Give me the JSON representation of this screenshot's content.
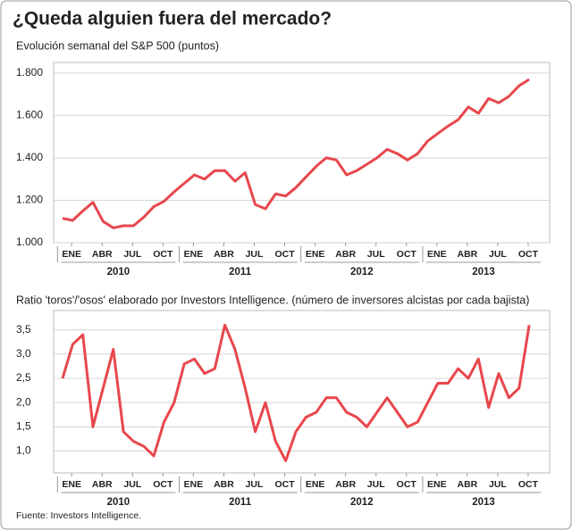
{
  "title": "¿Queda alguien fuera del mercado?",
  "source": "Fuente: Investors Intelligence.",
  "chart_data": [
    {
      "type": "line",
      "subtitle": "Evolución semanal del S&P 500 (puntos)",
      "x": [
        "2010-01",
        "2010-02",
        "2010-03",
        "2010-04",
        "2010-05",
        "2010-06",
        "2010-07",
        "2010-08",
        "2010-09",
        "2010-10",
        "2010-11",
        "2010-12",
        "2011-01",
        "2011-02",
        "2011-03",
        "2011-04",
        "2011-05",
        "2011-06",
        "2011-07",
        "2011-08",
        "2011-09",
        "2011-10",
        "2011-11",
        "2011-12",
        "2012-01",
        "2012-02",
        "2012-03",
        "2012-04",
        "2012-05",
        "2012-06",
        "2012-07",
        "2012-08",
        "2012-09",
        "2012-10",
        "2012-11",
        "2012-12",
        "2013-01",
        "2013-02",
        "2013-03",
        "2013-04",
        "2013-05",
        "2013-06",
        "2013-07",
        "2013-08",
        "2013-09",
        "2013-10",
        "2013-11"
      ],
      "series": [
        {
          "name": "S&P 500",
          "color": "#e8474c",
          "values": [
            1115,
            1105,
            1150,
            1190,
            1100,
            1070,
            1080,
            1080,
            1120,
            1170,
            1195,
            1240,
            1280,
            1320,
            1300,
            1340,
            1340,
            1290,
            1330,
            1180,
            1160,
            1230,
            1220,
            1260,
            1310,
            1360,
            1400,
            1390,
            1320,
            1340,
            1370,
            1400,
            1440,
            1420,
            1390,
            1420,
            1480,
            1515,
            1550,
            1580,
            1640,
            1610,
            1680,
            1660,
            1690,
            1740,
            1770
          ]
        }
      ],
      "ylim": [
        1000,
        1850
      ],
      "yticks": [
        {
          "value": 1000,
          "label": "1.000"
        },
        {
          "value": 1200,
          "label": "1.200"
        },
        {
          "value": 1400,
          "label": "1.400"
        },
        {
          "value": 1600,
          "label": "1.600"
        },
        {
          "value": 1800,
          "label": "1.800"
        }
      ],
      "xticks": [
        {
          "value": "2010-01",
          "label": "ENE"
        },
        {
          "value": "2010-04",
          "label": "ABR"
        },
        {
          "value": "2010-07",
          "label": "JUL"
        },
        {
          "value": "2010-10",
          "label": "OCT"
        },
        {
          "value": "2011-01",
          "label": "ENE"
        },
        {
          "value": "2011-04",
          "label": "ABR"
        },
        {
          "value": "2011-07",
          "label": "JUL"
        },
        {
          "value": "2011-10",
          "label": "OCT"
        },
        {
          "value": "2012-01",
          "label": "ENE"
        },
        {
          "value": "2012-04",
          "label": "ABR"
        },
        {
          "value": "2012-07",
          "label": "JUL"
        },
        {
          "value": "2012-10",
          "label": "OCT"
        },
        {
          "value": "2013-01",
          "label": "ENE"
        },
        {
          "value": "2013-04",
          "label": "ABR"
        },
        {
          "value": "2013-07",
          "label": "JUL"
        },
        {
          "value": "2013-10",
          "label": "OCT"
        }
      ],
      "xgroups": [
        "2010",
        "2011",
        "2012",
        "2013"
      ],
      "grid": true
    },
    {
      "type": "line",
      "subtitle": "Ratio 'toros'/'osos' elaborado por Investors Intelligence. (número de inversores alcistas por cada bajista)",
      "x": [
        "2010-01",
        "2010-02",
        "2010-03",
        "2010-04",
        "2010-05",
        "2010-06",
        "2010-07",
        "2010-08",
        "2010-09",
        "2010-10",
        "2010-11",
        "2010-12",
        "2011-01",
        "2011-02",
        "2011-03",
        "2011-04",
        "2011-05",
        "2011-06",
        "2011-07",
        "2011-08",
        "2011-09",
        "2011-10",
        "2011-11",
        "2011-12",
        "2012-01",
        "2012-02",
        "2012-03",
        "2012-04",
        "2012-05",
        "2012-06",
        "2012-07",
        "2012-08",
        "2012-09",
        "2012-10",
        "2012-11",
        "2012-12",
        "2013-01",
        "2013-02",
        "2013-03",
        "2013-04",
        "2013-05",
        "2013-06",
        "2013-07",
        "2013-08",
        "2013-09",
        "2013-10",
        "2013-11"
      ],
      "series": [
        {
          "name": "Ratio toros/osos",
          "color": "#e8474c",
          "values": [
            2.5,
            3.2,
            3.4,
            1.5,
            2.3,
            3.1,
            1.4,
            1.2,
            1.1,
            0.9,
            1.6,
            2.0,
            2.8,
            2.9,
            2.6,
            2.7,
            3.6,
            3.1,
            2.3,
            1.4,
            2.0,
            1.2,
            0.8,
            1.4,
            1.7,
            1.8,
            2.1,
            2.1,
            1.8,
            1.7,
            1.5,
            1.8,
            2.1,
            1.8,
            1.5,
            1.6,
            2.0,
            2.4,
            2.4,
            2.7,
            2.5,
            2.9,
            1.9,
            2.6,
            2.1,
            2.3,
            3.6
          ]
        }
      ],
      "ylim": [
        0.55,
        3.9
      ],
      "yticks": [
        {
          "value": 1.0,
          "label": "1,0"
        },
        {
          "value": 1.5,
          "label": "1,5"
        },
        {
          "value": 2.0,
          "label": "2,0"
        },
        {
          "value": 2.5,
          "label": "2,5"
        },
        {
          "value": 3.0,
          "label": "3,0"
        },
        {
          "value": 3.5,
          "label": "3,5"
        }
      ],
      "xticks": [
        {
          "value": "2010-01",
          "label": "ENE"
        },
        {
          "value": "2010-04",
          "label": "ABR"
        },
        {
          "value": "2010-07",
          "label": "JUL"
        },
        {
          "value": "2010-10",
          "label": "OCT"
        },
        {
          "value": "2011-01",
          "label": "ENE"
        },
        {
          "value": "2011-04",
          "label": "ABR"
        },
        {
          "value": "2011-07",
          "label": "JUL"
        },
        {
          "value": "2011-10",
          "label": "OCT"
        },
        {
          "value": "2012-01",
          "label": "ENE"
        },
        {
          "value": "2012-04",
          "label": "ABR"
        },
        {
          "value": "2012-07",
          "label": "JUL"
        },
        {
          "value": "2012-10",
          "label": "OCT"
        },
        {
          "value": "2013-01",
          "label": "ENE"
        },
        {
          "value": "2013-04",
          "label": "ABR"
        },
        {
          "value": "2013-07",
          "label": "JUL"
        },
        {
          "value": "2013-10",
          "label": "OCT"
        }
      ],
      "xgroups": [
        "2010",
        "2011",
        "2012",
        "2013"
      ],
      "grid": true
    }
  ]
}
